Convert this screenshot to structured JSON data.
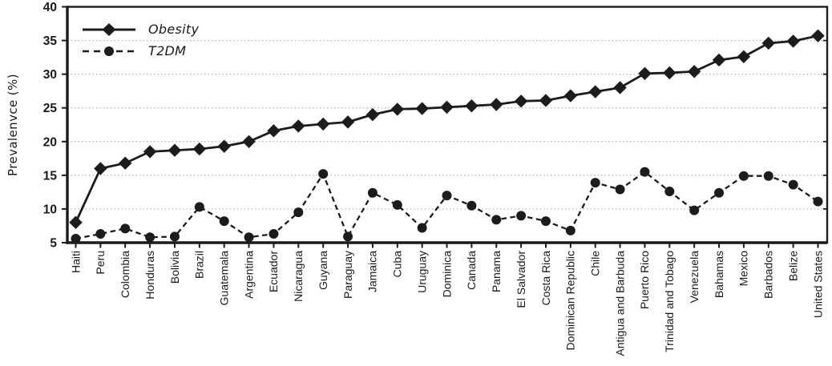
{
  "chart_data": {
    "type": "line",
    "title": "",
    "xlabel": "",
    "ylabel": "Prevalenvce (%)",
    "ylim": [
      5,
      40
    ],
    "yticks": [
      5,
      10,
      15,
      20,
      25,
      30,
      35,
      40
    ],
    "grid": "horizontal-dotted",
    "legend_position": "top-left-inside",
    "categories": [
      "Haiti",
      "Peru",
      "Colombia",
      "Honduras",
      "Bolivia",
      "Brazil",
      "Guatemala",
      "Argentina",
      "Ecuador",
      "Nicaragua",
      "Guyana",
      "Paraguay",
      "Jamaica",
      "Cuba",
      "Uruguay",
      "Dominica",
      "Canada",
      "Panama",
      "El Salvador",
      "Costa Rica",
      "Dominican Republic",
      "Chile",
      "Antigua and Barbuda",
      "Puerto Rico",
      "Trinidad and Tobago",
      "Venezuela",
      "Bahamas",
      "Mexico",
      "Barbados",
      "Belize",
      "United States"
    ],
    "series": [
      {
        "name": "Obesity",
        "line_style": "solid",
        "marker": "diamond",
        "values": [
          8.0,
          16.0,
          16.8,
          18.5,
          18.7,
          18.9,
          19.3,
          20.0,
          21.6,
          22.3,
          22.6,
          22.9,
          24.0,
          24.8,
          24.9,
          25.1,
          25.3,
          25.5,
          26.0,
          26.1,
          26.8,
          27.4,
          28.0,
          30.1,
          30.2,
          30.4,
          32.1,
          32.6,
          34.6,
          34.9,
          35.7
        ]
      },
      {
        "name": "T2DM",
        "line_style": "dashed",
        "marker": "circle",
        "values": [
          5.6,
          6.3,
          7.1,
          5.8,
          5.9,
          10.3,
          8.2,
          5.8,
          6.3,
          9.5,
          15.2,
          5.9,
          12.4,
          10.6,
          7.2,
          12.0,
          10.5,
          8.4,
          9.0,
          8.2,
          6.8,
          13.9,
          12.9,
          15.5,
          12.6,
          9.8,
          12.4,
          14.9,
          14.9,
          13.6,
          11.1
        ]
      }
    ],
    "colors": {
      "series": "#1c1c1c",
      "text": "#1a1a1a",
      "grid": "#b3b3b3",
      "background": "#ffffff"
    }
  }
}
